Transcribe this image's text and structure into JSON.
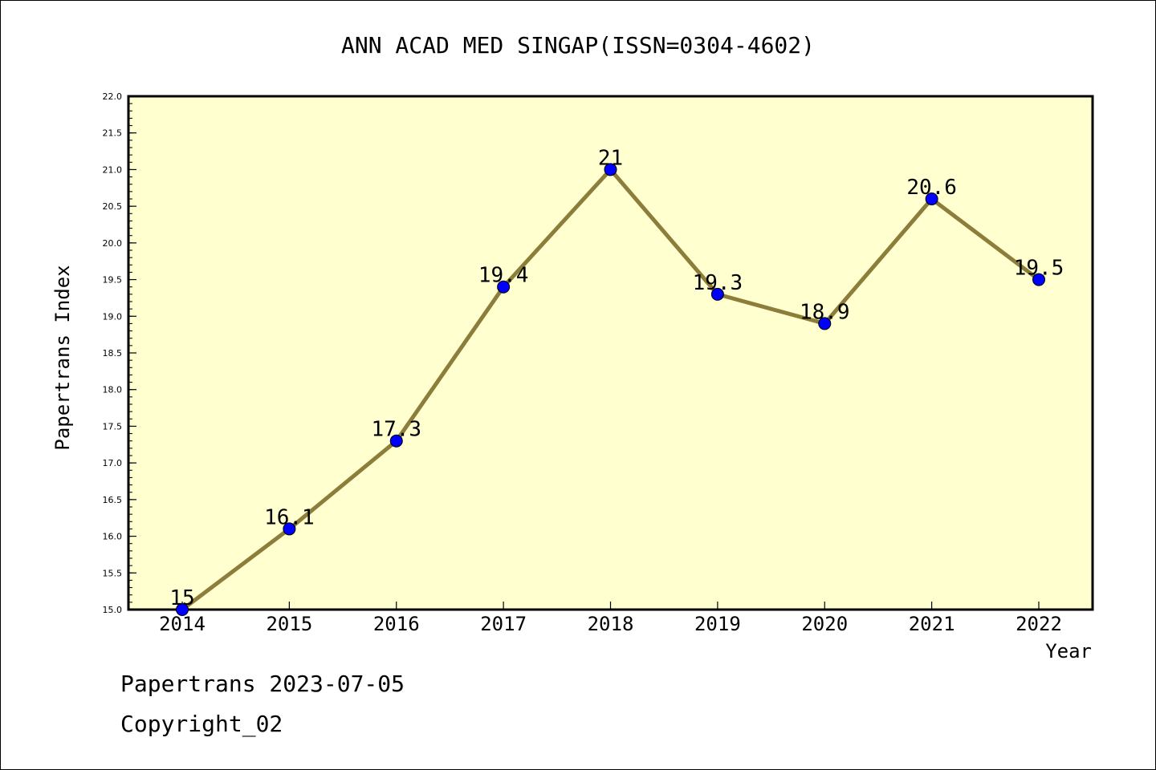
{
  "chart_data": {
    "type": "line",
    "title": "ANN ACAD MED SINGAP(ISSN=0304-4602)",
    "xlabel": "Year",
    "ylabel": "Papertrans Index",
    "categories": [
      "2014",
      "2015",
      "2016",
      "2017",
      "2018",
      "2019",
      "2020",
      "2021",
      "2022"
    ],
    "values": [
      15,
      16.1,
      17.3,
      19.4,
      21,
      19.3,
      18.9,
      20.6,
      19.5
    ],
    "data_labels": [
      "15",
      "16.1",
      "17.3",
      "19.4",
      "21",
      "19.3",
      "18.9",
      "20.6",
      "19.5"
    ],
    "ylim": [
      15.0,
      22.0
    ],
    "yticks": [
      "15.0",
      "15.5",
      "16.0",
      "16.5",
      "17.0",
      "17.5",
      "18.0",
      "18.5",
      "19.0",
      "19.5",
      "20.0",
      "20.5",
      "21.0",
      "21.5",
      "22.0"
    ],
    "grid": false,
    "colors": {
      "plot_background": "#ffffd0",
      "line": "#8c7d3a",
      "marker": "#0000ff"
    }
  },
  "footer": {
    "date_line": "Papertrans 2023-07-05",
    "copyright": "Copyright_02"
  }
}
